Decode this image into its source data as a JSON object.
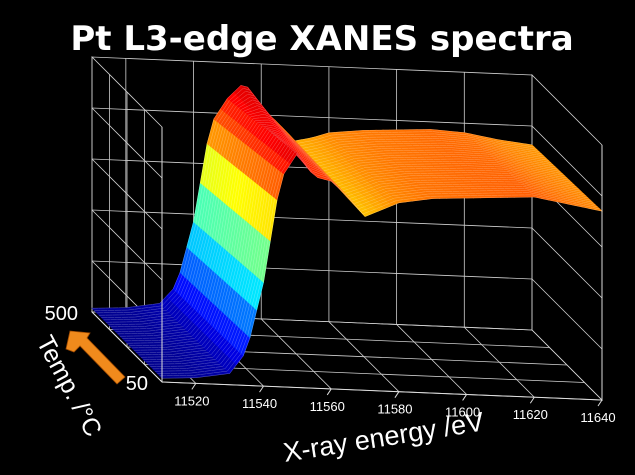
{
  "chart_data": {
    "type": "surface",
    "title": "Pt L3-edge XANES spectra",
    "xlabel": "X-ray energy /eV",
    "ylabel": "Temp. /°C",
    "x_ticks": [
      "11520",
      "11540",
      "11560",
      "11580",
      "11600",
      "11620",
      "11640"
    ],
    "xlim": [
      11510,
      11640
    ],
    "y_ticks": [
      "50",
      "500"
    ],
    "ylim": [
      50,
      500
    ],
    "grid": true,
    "colormap": "jet",
    "x": [
      11510,
      11520,
      11530,
      11535,
      11540,
      11545,
      11550,
      11555,
      11560,
      11565,
      11570,
      11575,
      11580,
      11590,
      11600,
      11610,
      11620,
      11630,
      11640
    ],
    "series": [
      {
        "temperature": 50,
        "values": [
          0.02,
          0.03,
          0.06,
          0.18,
          0.55,
          1.1,
          1.24,
          1.12,
          1.1,
          1.02,
          0.92,
          0.96,
          1.0,
          1.03,
          1.04,
          1.05,
          1.06,
          1.03,
          1.0
        ]
      },
      {
        "temperature": 500,
        "values": [
          0.02,
          0.03,
          0.06,
          0.16,
          0.5,
          1.02,
          1.16,
          1.25,
          1.12,
          1.04,
          0.95,
          0.97,
          1.0,
          1.02,
          1.03,
          1.04,
          1.03,
          1.0,
          0.98
        ]
      }
    ]
  },
  "annotations": {
    "temp_arrow_color": "#f08a1c"
  }
}
